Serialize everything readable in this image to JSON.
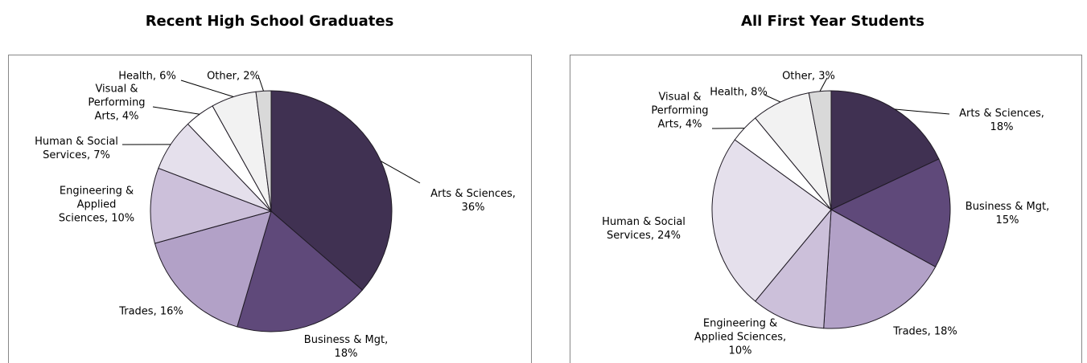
{
  "chart_data": [
    {
      "type": "pie",
      "title": "Recent High School Graduates",
      "categories": [
        "Arts & Sciences",
        "Business & Mgt",
        "Trades",
        "Engineering & Applied Sciences",
        "Human & Social Services",
        "Visual & Performing Arts",
        "Health",
        "Other"
      ],
      "values": [
        36,
        18,
        16,
        10,
        7,
        4,
        6,
        2
      ],
      "value_labels": [
        "36%",
        "18%",
        "16%",
        "10%",
        "7%",
        "4%",
        "6%",
        "2%"
      ],
      "colors": [
        "#403152",
        "#5f497a",
        "#b2a1c7",
        "#ccc0da",
        "#e5e0ec",
        "#ffffff",
        "#f2f2f2",
        "#d9d9d9"
      ]
    },
    {
      "type": "pie",
      "title": "All First Year Students",
      "categories": [
        "Arts & Sciences",
        "Business & Mgt",
        "Trades",
        "Engineering & Applied Sciences",
        "Human & Social Services",
        "Visual & Performing Arts",
        "Health",
        "Other"
      ],
      "values": [
        18,
        15,
        18,
        10,
        24,
        4,
        8,
        3
      ],
      "value_labels": [
        "18%",
        "15%",
        "18%",
        "10%",
        "24%",
        "4%",
        "8%",
        "3%"
      ],
      "colors": [
        "#403152",
        "#5f497a",
        "#b2a1c7",
        "#ccc0da",
        "#e5e0ec",
        "#ffffff",
        "#f2f2f2",
        "#d9d9d9"
      ]
    }
  ]
}
